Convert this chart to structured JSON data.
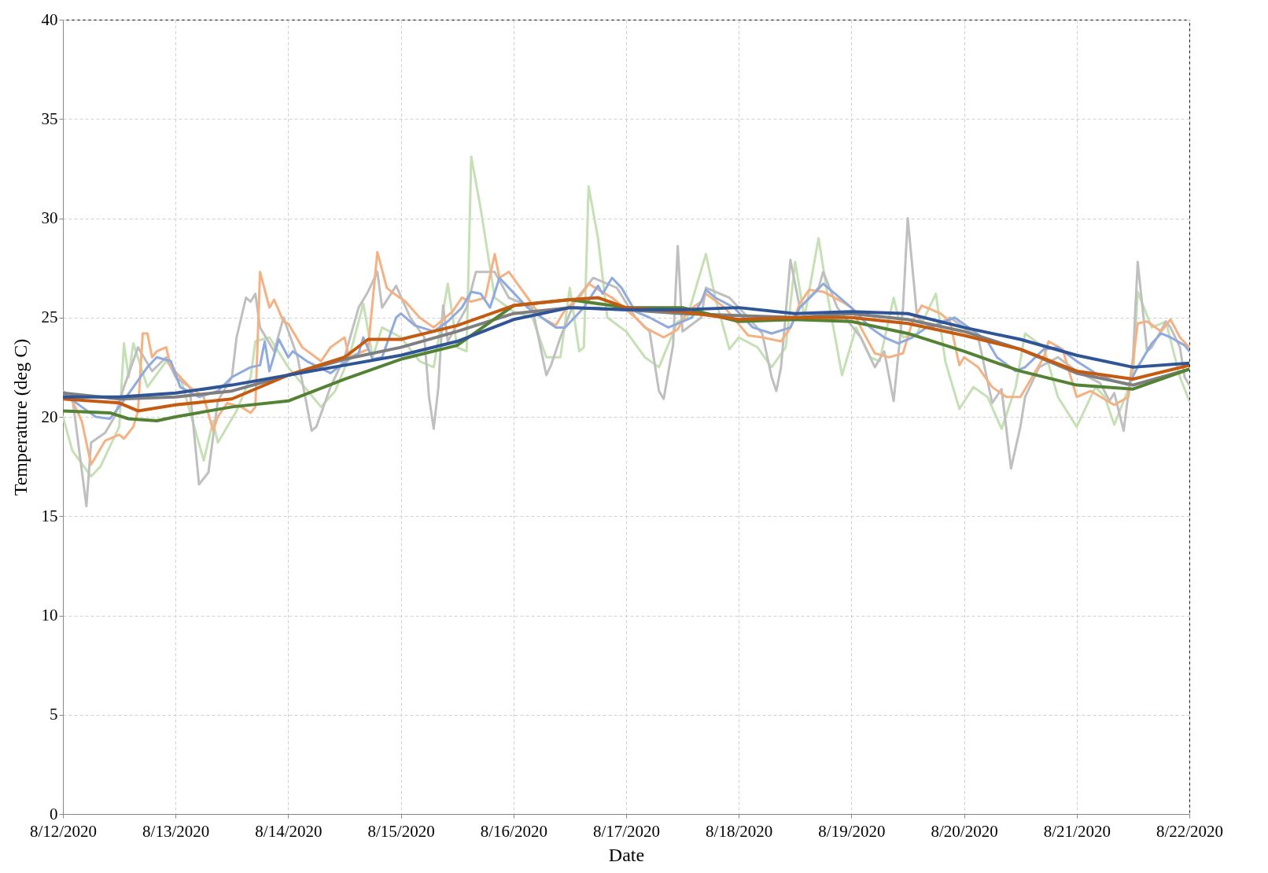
{
  "chart_data": {
    "type": "line",
    "xlabel": "Date",
    "ylabel": "Temperature (deg C)",
    "xlim": [
      "2020-08-12",
      "2020-08-22"
    ],
    "ylim": [
      0,
      40
    ],
    "xticks": [
      {
        "value": "2020-08-12",
        "label": "8/12/2020"
      },
      {
        "value": "2020-08-13",
        "label": "8/13/2020"
      },
      {
        "value": "2020-08-14",
        "label": "8/14/2020"
      },
      {
        "value": "2020-08-15",
        "label": "8/15/2020"
      },
      {
        "value": "2020-08-16",
        "label": "8/16/2020"
      },
      {
        "value": "2020-08-17",
        "label": "8/17/2020"
      },
      {
        "value": "2020-08-18",
        "label": "8/18/2020"
      },
      {
        "value": "2020-08-19",
        "label": "8/19/2020"
      },
      {
        "value": "2020-08-20",
        "label": "8/20/2020"
      },
      {
        "value": "2020-08-21",
        "label": "8/21/2020"
      },
      {
        "value": "2020-08-22",
        "label": "8/22/2020"
      }
    ],
    "yticks": [
      0,
      5,
      10,
      15,
      20,
      25,
      30,
      35,
      40
    ],
    "grid": true,
    "series": [
      {
        "color": "#c5e0b4",
        "x": [
          "2020-08-12T00:00",
          "2020-08-12T02:00",
          "2020-08-12T06:00",
          "2020-08-12T08:00",
          "2020-08-12T12:00",
          "2020-08-12T13:00",
          "2020-08-12T14:00",
          "2020-08-12T15:00",
          "2020-08-12T18:00",
          "2020-08-12T22:00",
          "2020-08-13T01:00",
          "2020-08-13T06:00",
          "2020-08-13T08:00",
          "2020-08-13T09:00",
          "2020-08-13T13:00",
          "2020-08-13T16:00",
          "2020-08-13T17:00",
          "2020-08-13T20:00",
          "2020-08-14T00:00",
          "2020-08-14T07:00",
          "2020-08-14T10:00",
          "2020-08-14T13:00",
          "2020-08-14T16:00",
          "2020-08-14T18:00",
          "2020-08-14T20:00",
          "2020-08-15T00:00",
          "2020-08-15T04:00",
          "2020-08-15T07:00",
          "2020-08-15T10:00",
          "2020-08-15T12:00",
          "2020-08-15T14:00",
          "2020-08-15T15:00",
          "2020-08-15T17:00",
          "2020-08-15T20:00",
          "2020-08-16T00:00",
          "2020-08-16T04:00",
          "2020-08-16T07:00",
          "2020-08-16T10:00",
          "2020-08-16T12:00",
          "2020-08-16T14:00",
          "2020-08-16T15:00",
          "2020-08-16T16:00",
          "2020-08-16T18:00",
          "2020-08-16T20:00",
          "2020-08-17T00:00",
          "2020-08-17T04:00",
          "2020-08-17T07:00",
          "2020-08-17T11:00",
          "2020-08-17T13:00",
          "2020-08-17T17:00",
          "2020-08-17T19:00",
          "2020-08-17T22:00",
          "2020-08-18T00:00",
          "2020-08-18T04:00",
          "2020-08-18T07:00",
          "2020-08-18T10:00",
          "2020-08-18T12:00",
          "2020-08-18T14:00",
          "2020-08-18T17:00",
          "2020-08-18T19:00",
          "2020-08-18T22:00",
          "2020-08-19T01:00",
          "2020-08-19T04:00",
          "2020-08-19T06:00",
          "2020-08-19T09:00",
          "2020-08-19T11:00",
          "2020-08-19T14:00",
          "2020-08-19T18:00",
          "2020-08-19T20:00",
          "2020-08-19T23:00",
          "2020-08-20T02:00",
          "2020-08-20T05:00",
          "2020-08-20T08:00",
          "2020-08-20T11:00",
          "2020-08-20T13:00",
          "2020-08-20T17:00",
          "2020-08-20T20:00",
          "2020-08-21T00:00",
          "2020-08-21T04:00",
          "2020-08-21T06:00",
          "2020-08-21T08:00",
          "2020-08-21T12:00",
          "2020-08-21T13:00",
          "2020-08-21T16:00",
          "2020-08-21T19:00",
          "2020-08-21T22:00",
          "2020-08-22T00:00"
        ],
        "values": [
          20.0,
          18.3,
          17.0,
          17.5,
          19.5,
          23.7,
          22.0,
          23.7,
          21.5,
          22.8,
          22.0,
          17.8,
          19.8,
          18.7,
          20.3,
          22.0,
          23.8,
          24.0,
          22.5,
          20.5,
          21.3,
          23.0,
          25.7,
          23.0,
          24.5,
          24.0,
          22.8,
          22.5,
          26.7,
          23.5,
          23.3,
          33.1,
          30.5,
          26.0,
          25.3,
          25.0,
          23.0,
          23.0,
          26.5,
          23.3,
          23.5,
          31.6,
          29.0,
          25.0,
          24.3,
          23.0,
          22.5,
          24.8,
          25.0,
          28.2,
          26.0,
          23.4,
          24.0,
          23.5,
          22.5,
          23.5,
          27.8,
          25.0,
          29.0,
          26.0,
          22.1,
          24.5,
          23.0,
          22.8,
          26.0,
          24.0,
          24.2,
          26.2,
          22.8,
          20.4,
          21.5,
          21.0,
          19.4,
          21.5,
          24.2,
          23.5,
          21.0,
          19.5,
          21.5,
          21.0,
          19.6,
          22.0,
          26.3,
          24.5,
          24.8,
          22.0,
          20.8
        ]
      },
      {
        "color": "#bfbfbf",
        "x": [
          "2020-08-12T00:00",
          "2020-08-12T02:00",
          "2020-08-12T05:00",
          "2020-08-12T06:00",
          "2020-08-12T09:00",
          "2020-08-12T11:00",
          "2020-08-12T13:00",
          "2020-08-12T16:00",
          "2020-08-12T19:00",
          "2020-08-12T22:00",
          "2020-08-13T00:00",
          "2020-08-13T03:00",
          "2020-08-13T05:00",
          "2020-08-13T07:00",
          "2020-08-13T09:00",
          "2020-08-13T12:00",
          "2020-08-13T13:00",
          "2020-08-13T15:00",
          "2020-08-13T16:00",
          "2020-08-13T17:00",
          "2020-08-13T18:00",
          "2020-08-13T21:00",
          "2020-08-13T23:00",
          "2020-08-14T02:00",
          "2020-08-14T05:00",
          "2020-08-14T06:00",
          "2020-08-14T09:00",
          "2020-08-14T12:00",
          "2020-08-14T15:00",
          "2020-08-14T17:00",
          "2020-08-14T19:00",
          "2020-08-14T20:00",
          "2020-08-14T23:00",
          "2020-08-15T02:00",
          "2020-08-15T05:00",
          "2020-08-15T06:00",
          "2020-08-15T07:00",
          "2020-08-15T08:00",
          "2020-08-15T09:00",
          "2020-08-15T10:00",
          "2020-08-15T14:00",
          "2020-08-15T16:00",
          "2020-08-15T20:00",
          "2020-08-15T23:00",
          "2020-08-16T04:00",
          "2020-08-16T07:00",
          "2020-08-16T08:00",
          "2020-08-16T10:00",
          "2020-08-16T13:00",
          "2020-08-16T17:00",
          "2020-08-16T22:00",
          "2020-08-17T02:00",
          "2020-08-17T05:00",
          "2020-08-17T07:00",
          "2020-08-17T08:00",
          "2020-08-17T10:00",
          "2020-08-17T11:00",
          "2020-08-17T12:00",
          "2020-08-17T16:00",
          "2020-08-17T17:00",
          "2020-08-17T22:00",
          "2020-08-18T02:00",
          "2020-08-18T05:00",
          "2020-08-18T07:00",
          "2020-08-18T08:00",
          "2020-08-18T09:00",
          "2020-08-18T11:00",
          "2020-08-18T13:00",
          "2020-08-18T17:00",
          "2020-08-18T18:00",
          "2020-08-18T21:00",
          "2020-08-19T02:00",
          "2020-08-19T05:00",
          "2020-08-19T07:00",
          "2020-08-19T09:00",
          "2020-08-19T11:00",
          "2020-08-19T12:00",
          "2020-08-19T14:00",
          "2020-08-19T17:00",
          "2020-08-19T21:00",
          "2020-08-20T03:00",
          "2020-08-20T06:00",
          "2020-08-20T08:00",
          "2020-08-20T10:00",
          "2020-08-20T12:00",
          "2020-08-20T13:00",
          "2020-08-20T16:00",
          "2020-08-20T20:00",
          "2020-08-21T00:00",
          "2020-08-21T05:00",
          "2020-08-21T07:00",
          "2020-08-21T08:00",
          "2020-08-21T10:00",
          "2020-08-21T12:00",
          "2020-08-21T13:00",
          "2020-08-21T15:00",
          "2020-08-21T16:00",
          "2020-08-21T19:00",
          "2020-08-21T20:00",
          "2020-08-21T22:00",
          "2020-08-21T23:00",
          "2020-08-22T00:00"
        ],
        "values": [
          21.3,
          21.0,
          15.5,
          18.7,
          19.2,
          20.0,
          21.5,
          23.5,
          22.3,
          23.0,
          22.0,
          21.5,
          16.6,
          17.2,
          20.8,
          22.0,
          24.0,
          26.0,
          25.8,
          26.2,
          24.5,
          23.3,
          25.0,
          23.0,
          19.3,
          19.5,
          21.5,
          23.0,
          25.5,
          26.3,
          27.3,
          25.5,
          26.6,
          25.0,
          24.0,
          21.0,
          19.4,
          21.5,
          25.6,
          23.8,
          25.5,
          27.3,
          27.3,
          26.0,
          25.5,
          22.1,
          22.6,
          24.0,
          25.8,
          27.0,
          26.5,
          25.0,
          24.3,
          21.3,
          20.9,
          23.6,
          28.6,
          24.3,
          25.0,
          26.5,
          26.0,
          25.0,
          24.2,
          22.0,
          21.3,
          22.5,
          27.9,
          25.5,
          26.5,
          27.3,
          25.5,
          24.0,
          22.5,
          23.3,
          20.8,
          25.5,
          30.0,
          25.0,
          24.5,
          25.0,
          24.0,
          20.7,
          21.4,
          17.4,
          19.5,
          21.0,
          22.5,
          23.0,
          22.3,
          21.7,
          20.8,
          21.2,
          19.3,
          23.0,
          27.8,
          23.3,
          23.5,
          24.8,
          24.5,
          23.5,
          22.0,
          21.6
        ]
      },
      {
        "color": "#f4b183",
        "x": [
          "2020-08-12T00:00",
          "2020-08-12T02:00",
          "2020-08-12T04:00",
          "2020-08-12T06:00",
          "2020-08-12T07:00",
          "2020-08-12T09:00",
          "2020-08-12T12:00",
          "2020-08-12T13:00",
          "2020-08-12T15:00",
          "2020-08-12T16:00",
          "2020-08-12T17:00",
          "2020-08-12T18:00",
          "2020-08-12T19:00",
          "2020-08-12T20:00",
          "2020-08-12T22:00",
          "2020-08-12T23:00",
          "2020-08-13T03:00",
          "2020-08-13T06:00",
          "2020-08-13T08:00",
          "2020-08-13T09:00",
          "2020-08-13T11:00",
          "2020-08-13T14:00",
          "2020-08-13T16:00",
          "2020-08-13T17:00",
          "2020-08-13T18:00",
          "2020-08-13T20:00",
          "2020-08-13T21:00",
          "2020-08-13T23:00",
          "2020-08-14T00:00",
          "2020-08-14T03:00",
          "2020-08-14T07:00",
          "2020-08-14T09:00",
          "2020-08-14T12:00",
          "2020-08-14T13:00",
          "2020-08-14T17:00",
          "2020-08-14T19:00",
          "2020-08-14T21:00",
          "2020-08-14T22:00",
          "2020-08-15T01:00",
          "2020-08-15T04:00",
          "2020-08-15T07:00",
          "2020-08-15T11:00",
          "2020-08-15T13:00",
          "2020-08-15T15:00",
          "2020-08-15T18:00",
          "2020-08-15T20:00",
          "2020-08-15T21:00",
          "2020-08-15T23:00",
          "2020-08-16T03:00",
          "2020-08-16T06:00",
          "2020-08-16T09:00",
          "2020-08-16T11:00",
          "2020-08-16T14:00",
          "2020-08-16T16:00",
          "2020-08-16T21:00",
          "2020-08-17T02:00",
          "2020-08-17T04:00",
          "2020-08-17T08:00",
          "2020-08-17T11:00",
          "2020-08-17T13:00",
          "2020-08-17T16:00",
          "2020-08-17T17:00",
          "2020-08-17T21:00",
          "2020-08-18T02:00",
          "2020-08-18T05:00",
          "2020-08-18T09:00",
          "2020-08-18T11:00",
          "2020-08-18T13:00",
          "2020-08-18T15:00",
          "2020-08-18T18:00",
          "2020-08-18T22:00",
          "2020-08-19T00:00",
          "2020-08-19T02:00",
          "2020-08-19T05:00",
          "2020-08-19T08:00",
          "2020-08-19T11:00",
          "2020-08-19T13:00",
          "2020-08-19T15:00",
          "2020-08-19T19:00",
          "2020-08-19T21:00",
          "2020-08-19T23:00",
          "2020-08-20T00:00",
          "2020-08-20T03:00",
          "2020-08-20T06:00",
          "2020-08-20T09:00",
          "2020-08-20T12:00",
          "2020-08-20T14:00",
          "2020-08-20T17:00",
          "2020-08-20T18:00",
          "2020-08-20T21:00",
          "2020-08-21T00:00",
          "2020-08-21T03:00",
          "2020-08-21T08:00",
          "2020-08-21T11:00",
          "2020-08-21T13:00",
          "2020-08-21T15:00",
          "2020-08-21T18:00",
          "2020-08-21T20:00",
          "2020-08-21T22:00",
          "2020-08-22T00:00"
        ],
        "values": [
          21.0,
          20.8,
          19.8,
          17.6,
          18.0,
          18.8,
          19.1,
          18.9,
          19.5,
          20.3,
          24.2,
          24.2,
          23.0,
          23.3,
          23.5,
          22.5,
          21.5,
          21.0,
          19.3,
          20.0,
          20.7,
          20.5,
          20.2,
          20.5,
          27.3,
          25.5,
          25.9,
          24.8,
          24.7,
          23.5,
          22.8,
          23.5,
          24.0,
          23.0,
          23.4,
          28.3,
          26.5,
          26.3,
          25.8,
          25.0,
          24.5,
          25.3,
          26.0,
          25.8,
          26.0,
          28.2,
          27.0,
          27.3,
          26.0,
          25.0,
          24.6,
          25.4,
          26.0,
          26.7,
          26.0,
          25.0,
          24.5,
          24.0,
          24.4,
          25.3,
          25.8,
          26.2,
          25.5,
          24.1,
          24.0,
          23.8,
          24.5,
          25.7,
          26.4,
          26.3,
          25.8,
          25.5,
          24.5,
          23.2,
          23.0,
          23.2,
          24.8,
          25.6,
          25.2,
          24.8,
          22.6,
          23.0,
          22.5,
          21.5,
          21.0,
          21.0,
          21.8,
          23.0,
          23.8,
          23.4,
          21.0,
          21.3,
          20.6,
          21.0,
          24.7,
          24.8,
          24.3,
          24.9,
          24.0,
          23.5
        ]
      },
      {
        "color": "#8faadc",
        "x": [
          "2020-08-12T00:00",
          "2020-08-12T04:00",
          "2020-08-12T07:00",
          "2020-08-12T10:00",
          "2020-08-12T12:00",
          "2020-08-12T15:00",
          "2020-08-12T18:00",
          "2020-08-12T20:00",
          "2020-08-12T23:00",
          "2020-08-13T01:00",
          "2020-08-13T05:00",
          "2020-08-13T09:00",
          "2020-08-13T12:00",
          "2020-08-13T16:00",
          "2020-08-13T18:00",
          "2020-08-13T19:00",
          "2020-08-13T20:00",
          "2020-08-13T22:00",
          "2020-08-14T00:00",
          "2020-08-14T01:00",
          "2020-08-14T04:00",
          "2020-08-14T09:00",
          "2020-08-14T13:00",
          "2020-08-14T15:00",
          "2020-08-14T16:00",
          "2020-08-14T18:00",
          "2020-08-14T20:00",
          "2020-08-14T23:00",
          "2020-08-15T00:00",
          "2020-08-15T03:00",
          "2020-08-15T07:00",
          "2020-08-15T10:00",
          "2020-08-15T13:00",
          "2020-08-15T15:00",
          "2020-08-15T17:00",
          "2020-08-15T19:00",
          "2020-08-15T21:00",
          "2020-08-15T23:00",
          "2020-08-16T03:00",
          "2020-08-16T06:00",
          "2020-08-16T09:00",
          "2020-08-16T11:00",
          "2020-08-16T13:00",
          "2020-08-16T15:00",
          "2020-08-16T18:00",
          "2020-08-16T19:00",
          "2020-08-16T21:00",
          "2020-08-16T23:00",
          "2020-08-17T02:00",
          "2020-08-17T05:00",
          "2020-08-17T09:00",
          "2020-08-17T12:00",
          "2020-08-17T14:00",
          "2020-08-17T16:00",
          "2020-08-17T17:00",
          "2020-08-17T19:00",
          "2020-08-17T23:00",
          "2020-08-18T03:00",
          "2020-08-18T07:00",
          "2020-08-18T11:00",
          "2020-08-18T13:00",
          "2020-08-18T16:00",
          "2020-08-18T18:00",
          "2020-08-18T20:00",
          "2020-08-19T00:00",
          "2020-08-19T04:00",
          "2020-08-19T07:00",
          "2020-08-19T10:00",
          "2020-08-19T13:00",
          "2020-08-19T16:00",
          "2020-08-19T18:00",
          "2020-08-19T22:00",
          "2020-08-20T01:00",
          "2020-08-20T05:00",
          "2020-08-20T07:00",
          "2020-08-20T11:00",
          "2020-08-20T13:00",
          "2020-08-20T17:00",
          "2020-08-20T20:00",
          "2020-08-21T00:00",
          "2020-08-21T04:00",
          "2020-08-21T08:00",
          "2020-08-21T11:00",
          "2020-08-21T13:00",
          "2020-08-21T16:00",
          "2020-08-21T18:00",
          "2020-08-21T20:00",
          "2020-08-21T23:00",
          "2020-08-22T00:00"
        ],
        "values": [
          21.2,
          20.5,
          20.0,
          19.9,
          20.5,
          21.5,
          22.5,
          23.0,
          22.8,
          21.5,
          21.0,
          21.3,
          22.0,
          22.5,
          22.6,
          23.8,
          22.3,
          23.9,
          23.0,
          23.3,
          22.8,
          22.2,
          22.9,
          23.2,
          24.0,
          22.9,
          23.0,
          25.0,
          25.2,
          24.6,
          24.3,
          24.8,
          25.5,
          26.3,
          26.2,
          25.5,
          27.0,
          26.5,
          25.5,
          25.0,
          24.5,
          24.5,
          25.0,
          25.5,
          26.6,
          26.2,
          27.0,
          26.5,
          25.3,
          25.0,
          24.5,
          24.8,
          25.0,
          25.8,
          26.4,
          26.0,
          25.5,
          24.5,
          24.2,
          24.5,
          25.5,
          26.2,
          26.7,
          26.3,
          25.5,
          24.5,
          24.0,
          23.7,
          24.0,
          24.5,
          24.6,
          25.0,
          24.5,
          23.8,
          23.0,
          22.3,
          22.5,
          23.4,
          23.5,
          22.8,
          22.2,
          21.8,
          21.6,
          22.5,
          23.7,
          24.2,
          24.0,
          23.6,
          23.3
        ]
      },
      {
        "color": "#7f7f7f",
        "x": [
          "2020-08-12T00:00",
          "2020-08-12T12:00",
          "2020-08-13T00:00",
          "2020-08-13T12:00",
          "2020-08-14T00:00",
          "2020-08-14T12:00",
          "2020-08-15T00:00",
          "2020-08-15T12:00",
          "2020-08-16T00:00",
          "2020-08-16T12:00",
          "2020-08-17T00:00",
          "2020-08-17T12:00",
          "2020-08-18T00:00",
          "2020-08-18T12:00",
          "2020-08-19T00:00",
          "2020-08-19T12:00",
          "2020-08-20T00:00",
          "2020-08-20T12:00",
          "2020-08-21T00:00",
          "2020-08-21T12:00",
          "2020-08-22T00:00"
        ],
        "values": [
          21.2,
          20.9,
          21.0,
          21.3,
          22.1,
          22.9,
          23.5,
          24.3,
          25.2,
          25.5,
          25.4,
          25.2,
          25.1,
          25.0,
          25.2,
          24.9,
          24.3,
          23.4,
          22.2,
          21.6,
          22.4
        ]
      },
      {
        "color": "#548235",
        "x": [
          "2020-08-12T00:00",
          "2020-08-12T10:00",
          "2020-08-12T14:00",
          "2020-08-12T20:00",
          "2020-08-13T00:00",
          "2020-08-13T12:00",
          "2020-08-14T00:00",
          "2020-08-14T12:00",
          "2020-08-15T00:00",
          "2020-08-15T12:00",
          "2020-08-16T00:00",
          "2020-08-16T12:00",
          "2020-08-17T00:00",
          "2020-08-17T12:00",
          "2020-08-18T00:00",
          "2020-08-18T12:00",
          "2020-08-19T00:00",
          "2020-08-19T12:00",
          "2020-08-20T00:00",
          "2020-08-20T12:00",
          "2020-08-21T00:00",
          "2020-08-21T12:00",
          "2020-08-22T00:00"
        ],
        "values": [
          20.3,
          20.2,
          19.9,
          19.8,
          20.0,
          20.5,
          20.8,
          21.9,
          22.9,
          23.6,
          25.6,
          25.9,
          25.5,
          25.5,
          24.8,
          24.9,
          24.8,
          24.2,
          23.3,
          22.3,
          21.6,
          21.4,
          22.4
        ]
      },
      {
        "color": "#c55a11",
        "x": [
          "2020-08-12T00:00",
          "2020-08-12T12:00",
          "2020-08-12T16:00",
          "2020-08-13T00:00",
          "2020-08-13T12:00",
          "2020-08-14T00:00",
          "2020-08-14T12:00",
          "2020-08-14T17:00",
          "2020-08-15T00:00",
          "2020-08-15T12:00",
          "2020-08-16T00:00",
          "2020-08-16T12:00",
          "2020-08-16T18:00",
          "2020-08-17T00:00",
          "2020-08-17T12:00",
          "2020-08-18T00:00",
          "2020-08-18T12:00",
          "2020-08-19T00:00",
          "2020-08-19T12:00",
          "2020-08-20T00:00",
          "2020-08-20T12:00",
          "2020-08-21T00:00",
          "2020-08-21T12:00",
          "2020-08-22T00:00"
        ],
        "values": [
          20.9,
          20.7,
          20.3,
          20.6,
          20.9,
          22.1,
          23.0,
          23.9,
          23.9,
          24.6,
          25.6,
          25.9,
          26.0,
          25.5,
          25.3,
          24.9,
          25.0,
          25.0,
          24.7,
          24.1,
          23.4,
          22.3,
          21.9,
          22.6
        ]
      },
      {
        "color": "#2f5597",
        "x": [
          "2020-08-12T00:00",
          "2020-08-12T12:00",
          "2020-08-13T00:00",
          "2020-08-13T12:00",
          "2020-08-14T00:00",
          "2020-08-14T12:00",
          "2020-08-15T00:00",
          "2020-08-15T12:00",
          "2020-08-16T00:00",
          "2020-08-16T12:00",
          "2020-08-17T00:00",
          "2020-08-17T12:00",
          "2020-08-18T00:00",
          "2020-08-18T12:00",
          "2020-08-19T00:00",
          "2020-08-19T12:00",
          "2020-08-20T00:00",
          "2020-08-20T12:00",
          "2020-08-21T00:00",
          "2020-08-21T12:00",
          "2020-08-22T00:00"
        ],
        "values": [
          21.0,
          21.0,
          21.2,
          21.6,
          22.1,
          22.6,
          23.1,
          23.8,
          24.9,
          25.5,
          25.4,
          25.4,
          25.5,
          25.2,
          25.3,
          25.2,
          24.5,
          23.9,
          23.1,
          22.5,
          22.7
        ]
      }
    ]
  }
}
